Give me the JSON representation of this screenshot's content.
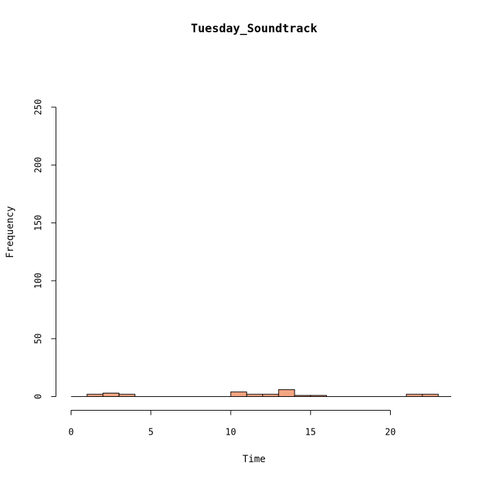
{
  "chart_data": {
    "type": "bar",
    "title": "Tuesday_Soundtrack",
    "xlabel": "Time",
    "ylabel": "Frequency",
    "xlim": [
      0,
      24
    ],
    "ylim": [
      0,
      250
    ],
    "x_ticks": [
      0,
      5,
      10,
      15,
      20
    ],
    "y_ticks": [
      0,
      50,
      100,
      150,
      200,
      250
    ],
    "bin_width": 1,
    "bar_color": "#F4A582",
    "bins": [
      {
        "start": 0,
        "count": 0
      },
      {
        "start": 1,
        "count": 2
      },
      {
        "start": 2,
        "count": 3
      },
      {
        "start": 3,
        "count": 2
      },
      {
        "start": 4,
        "count": 0
      },
      {
        "start": 5,
        "count": 0
      },
      {
        "start": 6,
        "count": 0
      },
      {
        "start": 7,
        "count": 0
      },
      {
        "start": 8,
        "count": 0
      },
      {
        "start": 9,
        "count": 0
      },
      {
        "start": 10,
        "count": 4
      },
      {
        "start": 11,
        "count": 2
      },
      {
        "start": 12,
        "count": 2
      },
      {
        "start": 13,
        "count": 6
      },
      {
        "start": 14,
        "count": 1
      },
      {
        "start": 15,
        "count": 1
      },
      {
        "start": 16,
        "count": 0
      },
      {
        "start": 17,
        "count": 0
      },
      {
        "start": 18,
        "count": 0
      },
      {
        "start": 19,
        "count": 0
      },
      {
        "start": 20,
        "count": 0
      },
      {
        "start": 21,
        "count": 2
      },
      {
        "start": 22,
        "count": 2
      },
      {
        "start": 23,
        "count": 0
      }
    ],
    "grid": false,
    "legend": "none"
  }
}
